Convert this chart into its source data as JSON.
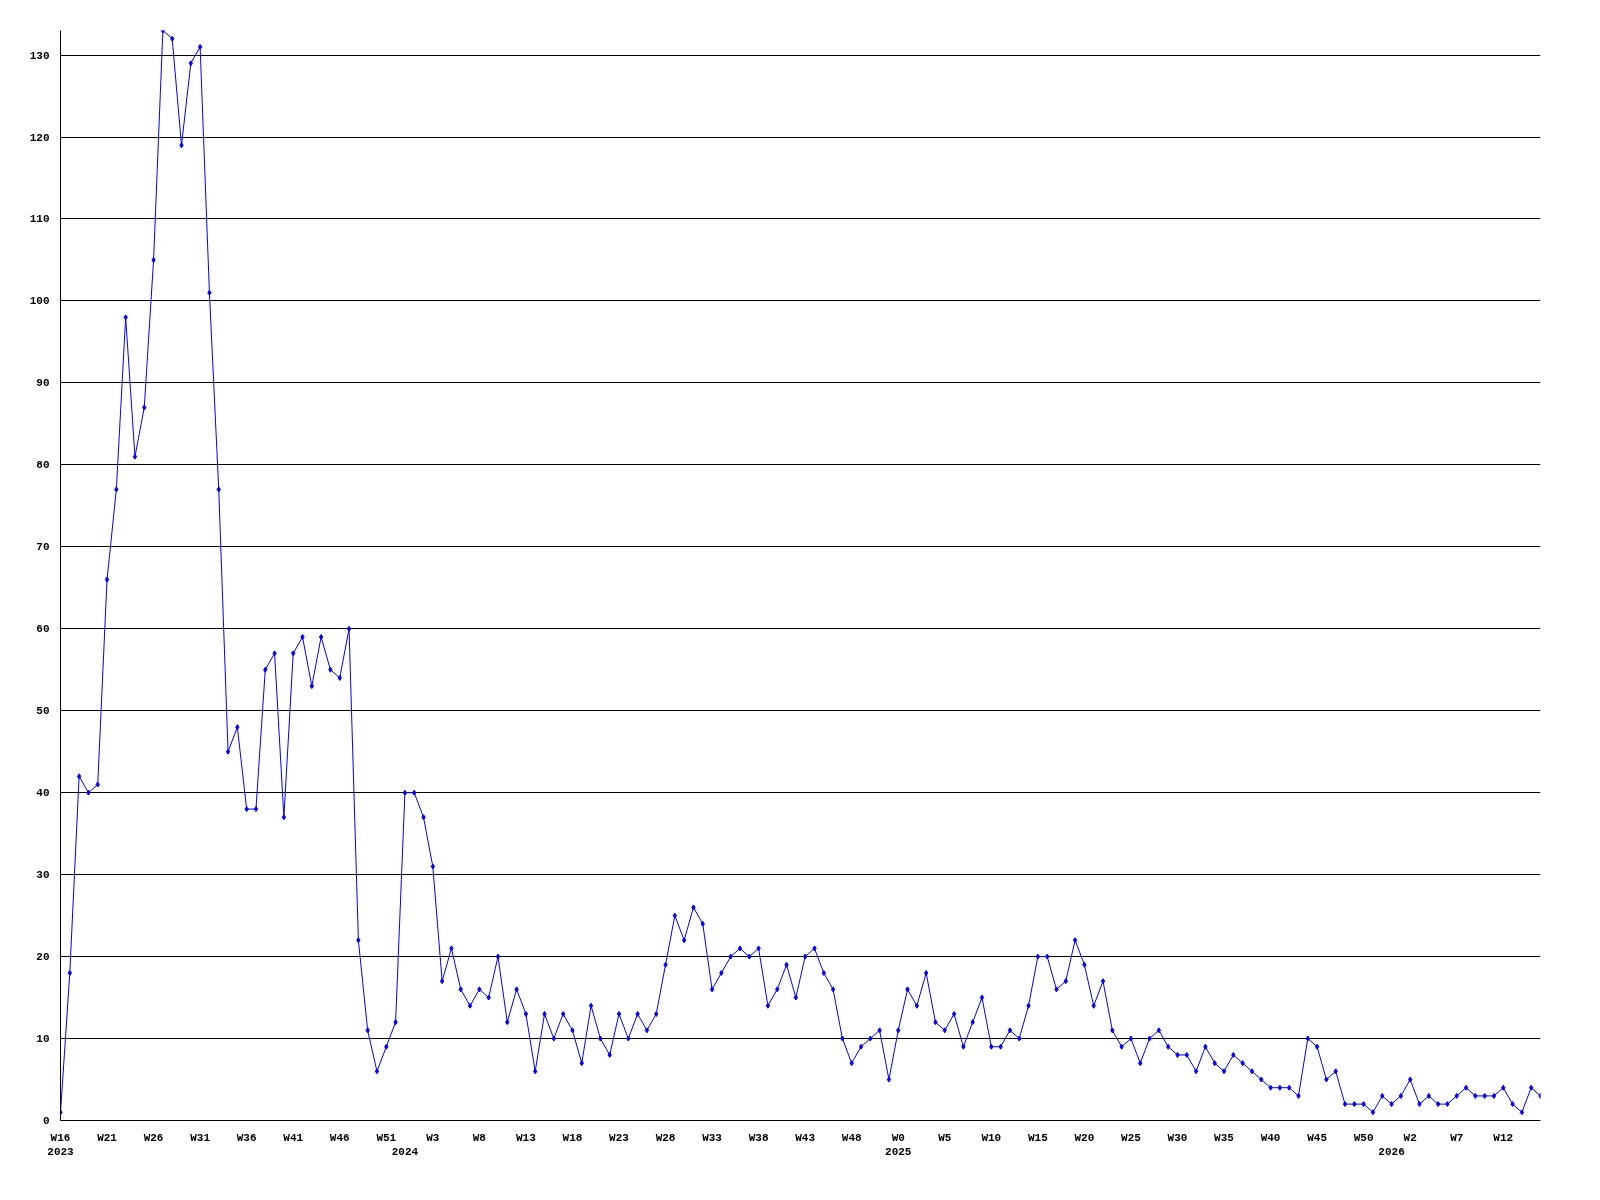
{
  "chart_data": {
    "type": "line",
    "categories": [
      "W16\n2023",
      null,
      null,
      null,
      null,
      "W21",
      null,
      null,
      null,
      null,
      "W26",
      null,
      null,
      null,
      null,
      "W31",
      null,
      null,
      null,
      null,
      "W36",
      null,
      null,
      null,
      null,
      "W41",
      null,
      null,
      null,
      null,
      "W46",
      null,
      null,
      null,
      null,
      "W51",
      null,
      "\n2024",
      null,
      null,
      "W3",
      null,
      null,
      null,
      null,
      "W8",
      null,
      null,
      null,
      null,
      "W13",
      null,
      null,
      null,
      null,
      "W18",
      null,
      null,
      null,
      null,
      "W23",
      null,
      null,
      null,
      null,
      "W28",
      null,
      null,
      null,
      null,
      "W33",
      null,
      null,
      null,
      null,
      "W38",
      null,
      null,
      null,
      null,
      "W43",
      null,
      null,
      null,
      null,
      "W48",
      null,
      null,
      null,
      null,
      "W0\n2025",
      null,
      null,
      null,
      null,
      "W5",
      null,
      null,
      null,
      null,
      "W10",
      null,
      null,
      null,
      null,
      "W15",
      null,
      null,
      null,
      null,
      "W20",
      null,
      null,
      null,
      null,
      "W25",
      null,
      null,
      null,
      null,
      "W30",
      null,
      null,
      null,
      null,
      "W35",
      null,
      null,
      null,
      null,
      "W40",
      null,
      null,
      null,
      null,
      "W45",
      null,
      null,
      null,
      null,
      "W50",
      null,
      null,
      "\n2026",
      null,
      "W2",
      null,
      null,
      null,
      null,
      "W7",
      null,
      null,
      null,
      null,
      "W12",
      null,
      null,
      null,
      null
    ],
    "series": [
      {
        "color": "#0000ff",
        "values": [
          1,
          18,
          42,
          40,
          41,
          66,
          77,
          98,
          81,
          87,
          105,
          133,
          132,
          119,
          129,
          131,
          101,
          77,
          45,
          48,
          38,
          38,
          55,
          57,
          37,
          57,
          59,
          53,
          59,
          55,
          54,
          60,
          22,
          11,
          6,
          9,
          12,
          40,
          40,
          37,
          31,
          17,
          21,
          16,
          14,
          16,
          15,
          20,
          12,
          16,
          13,
          6,
          13,
          10,
          13,
          11,
          7,
          14,
          10,
          8,
          13,
          10,
          13,
          11,
          13,
          19,
          25,
          22,
          26,
          24,
          16,
          18,
          20,
          21,
          20,
          21,
          14,
          16,
          19,
          15,
          20,
          21,
          18,
          16,
          10,
          7,
          9,
          10,
          11,
          5,
          11,
          16,
          14,
          18,
          12,
          11,
          13,
          9,
          12,
          15,
          9,
          9,
          11,
          10,
          14,
          20,
          20,
          16,
          17,
          22,
          19,
          14,
          17,
          11,
          9,
          10,
          7,
          10,
          11,
          9,
          8,
          8,
          6,
          9,
          7,
          6,
          8,
          7,
          6,
          5,
          4,
          4,
          4,
          3,
          10,
          9,
          5,
          6,
          2,
          2,
          2,
          1,
          3,
          2,
          3,
          5,
          2,
          3,
          2,
          2,
          3,
          4,
          3,
          3,
          3,
          4,
          2,
          1,
          4,
          3
        ]
      }
    ],
    "ylim": [
      0,
      133
    ],
    "yticks": [
      0,
      10,
      20,
      30,
      40,
      50,
      60,
      70,
      80,
      90,
      100,
      110,
      120,
      130
    ],
    "grid": "y",
    "marker": "diamond",
    "line_style": "solid"
  }
}
